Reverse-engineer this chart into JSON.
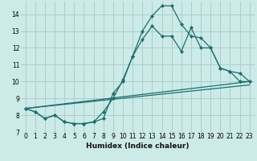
{
  "xlabel": "Humidex (Indice chaleur)",
  "ylabel": "",
  "xlim": [
    -0.5,
    23.5
  ],
  "ylim": [
    7.0,
    14.75
  ],
  "yticks": [
    7,
    8,
    9,
    10,
    11,
    12,
    13,
    14
  ],
  "xticks": [
    0,
    1,
    2,
    3,
    4,
    5,
    6,
    7,
    8,
    9,
    10,
    11,
    12,
    13,
    14,
    15,
    16,
    17,
    18,
    19,
    20,
    21,
    22,
    23
  ],
  "bg_color": "#cceae7",
  "grid_color": "#aacfcc",
  "line_color": "#1a7070",
  "line1_x": [
    0,
    1,
    2,
    3,
    4,
    5,
    6,
    7,
    8,
    9,
    10,
    11,
    12,
    13,
    14,
    15,
    16,
    17,
    18,
    19,
    20,
    21,
    22,
    23
  ],
  "line1_y": [
    8.4,
    8.2,
    7.8,
    8.0,
    7.6,
    7.5,
    7.5,
    7.6,
    7.8,
    9.3,
    10.0,
    11.5,
    13.0,
    13.9,
    14.5,
    14.5,
    13.4,
    12.7,
    12.6,
    12.0,
    10.8,
    10.6,
    10.0,
    10.0
  ],
  "line2_x": [
    0,
    1,
    2,
    3,
    4,
    5,
    6,
    7,
    8,
    9,
    10,
    11,
    12,
    13,
    14,
    15,
    16,
    17,
    18,
    19,
    20,
    21,
    22,
    23
  ],
  "line2_y": [
    8.4,
    8.2,
    7.8,
    8.0,
    7.6,
    7.5,
    7.5,
    7.6,
    8.2,
    9.0,
    10.1,
    11.5,
    12.5,
    13.3,
    12.7,
    12.7,
    11.8,
    13.2,
    12.0,
    12.0,
    10.8,
    10.6,
    10.5,
    10.0
  ],
  "line3_x": [
    0,
    23
  ],
  "line3_y": [
    8.4,
    10.0
  ],
  "line4_x": [
    0,
    23
  ],
  "line4_y": [
    8.4,
    9.8
  ]
}
